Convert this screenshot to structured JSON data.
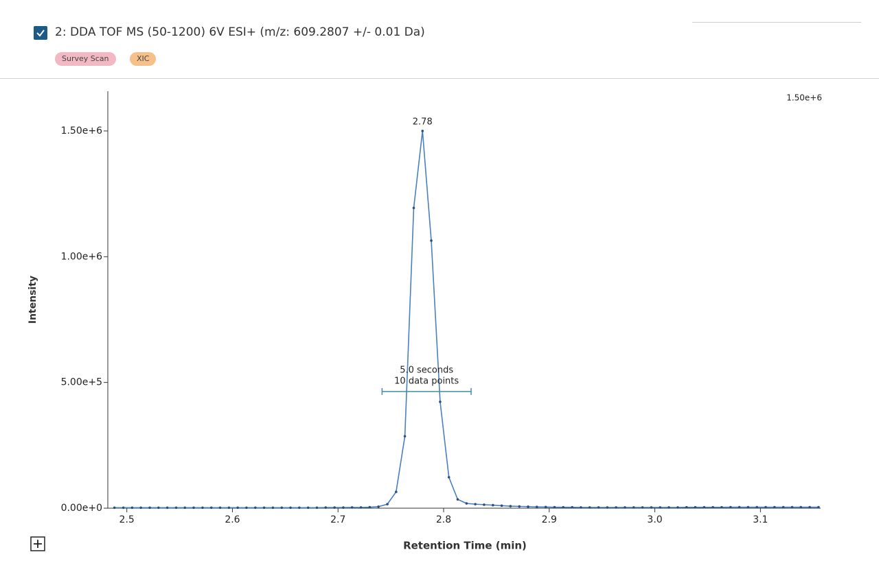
{
  "header": {
    "title": "2: DDA TOF MS (50-1200) 6V ESI+ (m/z: 609.2807 +/- 0.01 Da)",
    "tags": [
      "Survey Scan",
      "XIC"
    ]
  },
  "chart_data": {
    "type": "line",
    "xlabel": "Retention Time (min)",
    "ylabel": "Intensity",
    "max_label": "1.50e+6",
    "x": [
      2.4883,
      2.4967,
      2.505,
      2.5133,
      2.5217,
      2.53,
      2.5383,
      2.5467,
      2.555,
      2.5633,
      2.5717,
      2.58,
      2.5883,
      2.5967,
      2.605,
      2.6133,
      2.6217,
      2.63,
      2.6383,
      2.6467,
      2.655,
      2.6633,
      2.6717,
      2.68,
      2.6883,
      2.6967,
      2.705,
      2.7133,
      2.7217,
      2.73,
      2.7383,
      2.7467,
      2.755,
      2.7633,
      2.7717,
      2.78,
      2.7883,
      2.7967,
      2.805,
      2.8133,
      2.8217,
      2.83,
      2.8383,
      2.8467,
      2.855,
      2.8633,
      2.8717,
      2.88,
      2.8883,
      2.8967,
      2.905,
      2.9133,
      2.9217,
      2.93,
      2.9383,
      2.9467,
      2.955,
      2.9633,
      2.9717,
      2.98,
      2.9883,
      2.9967,
      3.005,
      3.0133,
      3.0217,
      3.03,
      3.0383,
      3.0467,
      3.055,
      3.0633,
      3.0717,
      3.08,
      3.0883,
      3.0967,
      3.105,
      3.1133,
      3.1217,
      3.13,
      3.1383,
      3.1467,
      3.155
    ],
    "series": [
      {
        "color": "#4a7fc1",
        "marker_color": "#2b4e7e",
        "values": [
          2000,
          2000,
          2000,
          2000,
          2000,
          2000,
          2000,
          2000,
          2000,
          2000,
          2000,
          2000,
          2000,
          2000,
          2000,
          2000,
          2000,
          2000,
          2000,
          2000,
          2000,
          2000,
          2000,
          2000,
          2500,
          2500,
          2500,
          3000,
          3000,
          4000,
          6000,
          16000,
          65000,
          286000,
          1194000,
          1500000,
          1064000,
          423000,
          123000,
          35000,
          19000,
          16000,
          14000,
          12000,
          10000,
          8000,
          7000,
          6000,
          5000,
          4500,
          4000,
          3500,
          3500,
          3000,
          3000,
          3000,
          3000,
          3000,
          3000,
          3000,
          3000,
          3000,
          3000,
          3000,
          3000,
          3500,
          3500,
          3500,
          3500,
          3500,
          4000,
          4000,
          4000,
          4000,
          4000,
          4000,
          4000,
          4000,
          4000,
          4000,
          4000
        ]
      }
    ],
    "annotations": [
      {
        "text": "2.78",
        "x": 2.78,
        "y": 1500000
      }
    ],
    "width_bar": {
      "x_start": 2.7417,
      "x_end": 2.826,
      "y": 464000,
      "lines": [
        "5.0 seconds",
        "10 data points"
      ]
    },
    "xlim": [
      2.482,
      3.157
    ],
    "ylim": [
      0,
      1658000
    ],
    "xticks": [
      2.5,
      2.6,
      2.7,
      2.8,
      2.9,
      {
        "value": 3,
        "label": "3.0"
      },
      3.1
    ],
    "yticks": [
      {
        "value": 0,
        "label": "0.00e+0"
      },
      {
        "value": 500000,
        "label": "5.00e+5"
      },
      {
        "value": 1000000,
        "label": "1.00e+6"
      },
      {
        "value": 1500000,
        "label": "1.50e+6"
      }
    ],
    "grid": false
  }
}
